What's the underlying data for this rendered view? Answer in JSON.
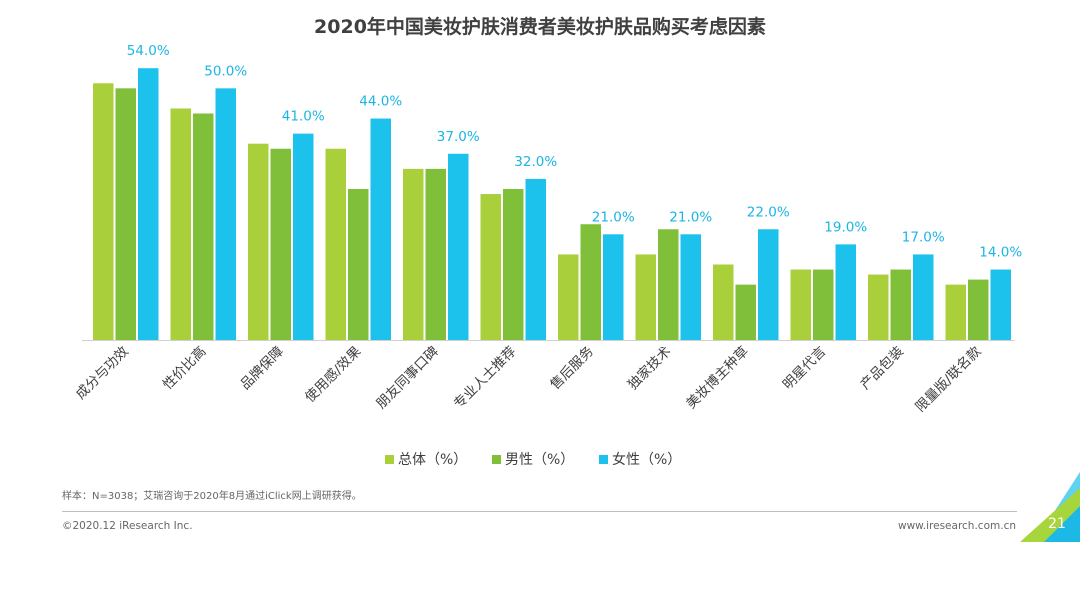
{
  "title": "2020年中国美妆护肤消费者美妆护肤品购买考虑因素",
  "chart_data": {
    "type": "bar",
    "title": "2020年中国美妆护肤消费者美妆护肤品购买考虑因素",
    "categories": [
      "成分与功效",
      "性价比高",
      "品牌保障",
      "使用感/效果",
      "朋友同事口碑",
      "专业人士推荐",
      "售后服务",
      "独家技术",
      "美妆博主种草",
      "明星代言",
      "产品包装",
      "限量版/联名款"
    ],
    "series": [
      {
        "name": "总体（%）",
        "values": [
          51,
          46,
          39,
          38,
          34,
          29,
          17,
          17,
          15,
          14,
          13,
          11
        ]
      },
      {
        "name": "男性（%）",
        "values": [
          50,
          45,
          38,
          30,
          34,
          30,
          23,
          22,
          11,
          14,
          14,
          12
        ]
      },
      {
        "name": "女性（%）",
        "values": [
          54.0,
          50.0,
          41.0,
          44.0,
          37.0,
          32.0,
          21.0,
          21.0,
          22.0,
          19.0,
          17.0,
          14.0
        ]
      }
    ],
    "data_labels": [
      "54.0%",
      "50.0%",
      "41.0%",
      "44.0%",
      "37.0%",
      "32.0%",
      "21.0%",
      "21.0%",
      "22.0%",
      "19.0%",
      "17.0%",
      "14.0%"
    ],
    "ylim": [
      0,
      60
    ],
    "grid": false,
    "legend_position": "bottom",
    "colors": [
      "#a9cf3b",
      "#80bf3a",
      "#1cc2ec"
    ],
    "xlabel": "",
    "ylabel": ""
  },
  "footer": {
    "source": "样本：N=3038；艾瑞咨询于2020年8月通过iClick网上调研获得。",
    "copyright": "©2020.12 iResearch Inc.",
    "website": "www.iresearch.com.cn",
    "page_number": "21"
  },
  "accent_colors": [
    "#1cc2ec",
    "#80bf3a",
    "#a9cf3b"
  ]
}
